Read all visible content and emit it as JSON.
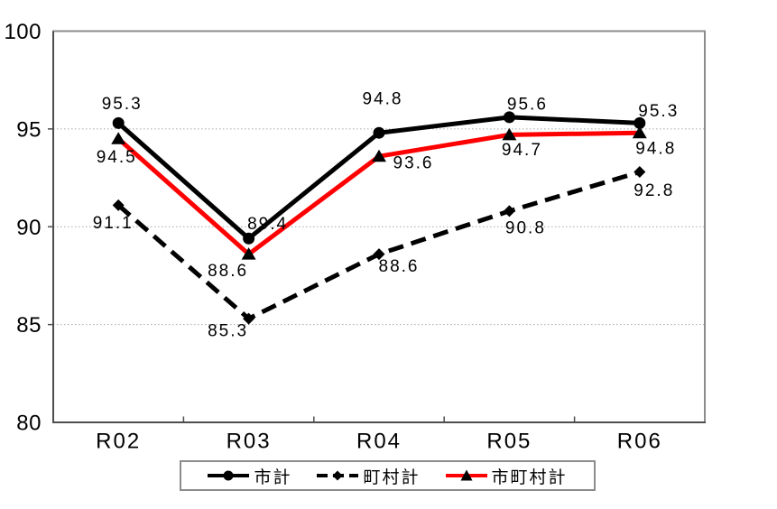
{
  "chart_data": {
    "type": "line",
    "title": "",
    "xlabel": "",
    "ylabel": "",
    "categories": [
      "R02",
      "R03",
      "R04",
      "R05",
      "R06"
    ],
    "series": [
      {
        "name": "市計",
        "values": [
          95.3,
          89.4,
          94.8,
          95.6,
          95.3
        ],
        "color": "#000000",
        "line_style": "solid",
        "marker": "circle",
        "marker_color": "#000000"
      },
      {
        "name": "町村計",
        "values": [
          91.1,
          85.3,
          88.6,
          90.8,
          92.8
        ],
        "color": "#000000",
        "line_style": "dashed",
        "marker": "diamond",
        "marker_color": "#000000"
      },
      {
        "name": "市町村計",
        "values": [
          94.5,
          88.6,
          93.6,
          94.7,
          94.8
        ],
        "color": "#ff0000",
        "line_style": "solid",
        "marker": "triangle",
        "marker_color": "#000000"
      }
    ],
    "ylim": [
      80,
      100
    ],
    "ytick_interval": 5,
    "yticks": [
      "100",
      "95",
      "90",
      "85",
      "80"
    ],
    "grid": "horizontal dotted gridlines at 85, 90, 95",
    "legend_position": "bottom center, boxed",
    "data_labels_shown": true,
    "colors": {
      "grid": "#a6a6a6",
      "frame": "#8c8c8c",
      "axis": "#4d4d4d",
      "text": "#000000",
      "background": "#ffffff"
    },
    "layout": {
      "label_offsets": [
        [
          [
            4,
            -21
          ],
          [
            21,
            -16
          ],
          [
            4,
            -37
          ],
          [
            20,
            -14
          ],
          [
            21,
            -13
          ]
        ],
        [
          [
            -6,
            20
          ],
          [
            -23,
            14
          ],
          [
            22,
            14
          ],
          [
            18,
            19
          ],
          [
            16,
            21
          ]
        ],
        [
          [
            -2,
            21
          ],
          [
            -23,
            19
          ],
          [
            38,
            8
          ],
          [
            14,
            17
          ],
          [
            18,
            18
          ]
        ]
      ]
    }
  }
}
